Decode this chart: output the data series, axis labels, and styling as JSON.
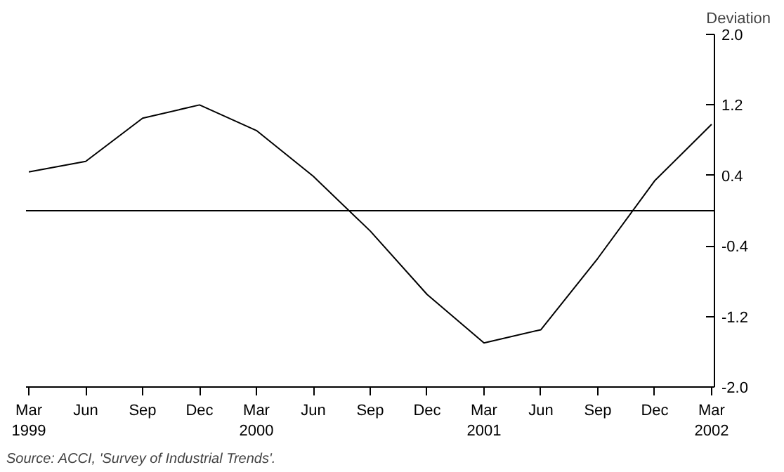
{
  "chart_data": {
    "type": "line",
    "ylabel": "Deviation",
    "categories": [
      "Mar\n1999",
      "Jun",
      "Sep",
      "Dec",
      "Mar\n2000",
      "Jun",
      "Sep",
      "Dec",
      "Mar\n2001",
      "Jun",
      "Sep",
      "Dec",
      "Mar\n2002"
    ],
    "series": [
      {
        "color": "#000000",
        "values": [
          0.44,
          0.56,
          1.05,
          1.2,
          0.91,
          0.39,
          -0.23,
          -0.95,
          -1.5,
          -1.35,
          -0.54,
          0.34,
          0.98
        ]
      }
    ],
    "ylim": [
      -2.0,
      2.0
    ],
    "yticks": [
      {
        "value": -2.0,
        "label": "-2.0"
      },
      {
        "value": -1.2,
        "label": "-1.2"
      },
      {
        "value": -0.4,
        "label": "-0.4"
      },
      {
        "value": 0.4,
        "label": "0.4"
      },
      {
        "value": 1.2,
        "label": "1.2"
      },
      {
        "value": 2.0,
        "label": "2.0"
      }
    ],
    "ref_lines": [
      {
        "axis": "y",
        "value": 0,
        "color": "#000000"
      }
    ],
    "grid": false,
    "marker": "none",
    "line_style": "solid",
    "annotations": [
      "Source: ACCI, 'Survey of Industrial Trends'."
    ]
  }
}
